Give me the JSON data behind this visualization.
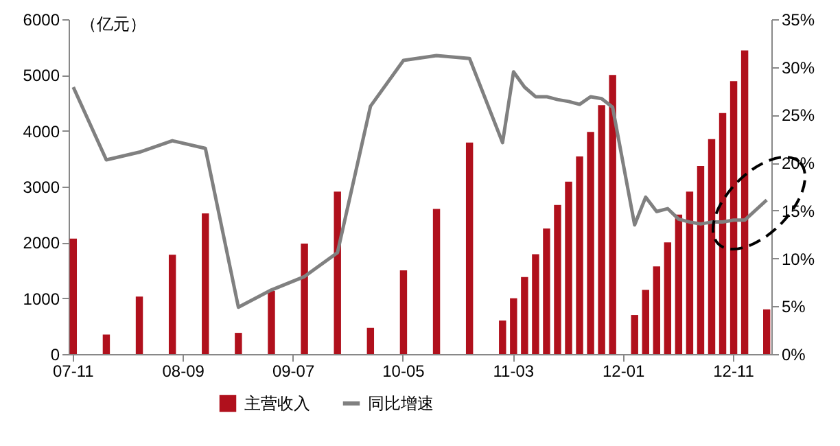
{
  "chart_data": {
    "type": "bar",
    "ylabel": "（亿元）",
    "categories": [
      "07-11",
      null,
      null,
      null,
      null,
      null,
      null,
      null,
      null,
      null,
      "08-09",
      null,
      null,
      null,
      null,
      null,
      null,
      null,
      null,
      null,
      "09-07",
      null,
      null,
      null,
      null,
      null,
      null,
      null,
      null,
      null,
      "10-05",
      null,
      null,
      null,
      null,
      null,
      null,
      null,
      null,
      null,
      "11-03",
      null,
      null,
      null,
      null,
      null,
      null,
      null,
      null,
      null,
      "12-01",
      null,
      null,
      null,
      null,
      null,
      null,
      null,
      null,
      null,
      "12-11",
      null,
      null,
      null
    ],
    "series": [
      {
        "name": "主营收入",
        "color": "#b0101c",
        "values": [
          2070,
          null,
          null,
          350,
          null,
          null,
          1030,
          null,
          null,
          1780,
          null,
          null,
          2520,
          null,
          null,
          380,
          null,
          null,
          1130,
          null,
          null,
          1980,
          null,
          null,
          2910,
          null,
          null,
          470,
          null,
          null,
          1500,
          null,
          null,
          2600,
          null,
          null,
          3790,
          null,
          null,
          600,
          1000,
          1380,
          1790,
          2250,
          2670,
          3090,
          3540,
          3980,
          4460,
          5000,
          null,
          700,
          1150,
          1570,
          2000,
          2500,
          2910,
          3370,
          3850,
          4320,
          4890,
          5440,
          null,
          800
        ]
      },
      {
        "name": "同比增速",
        "type": "line",
        "axis": "y2",
        "color": "#808080",
        "values": [
          27.9,
          null,
          null,
          20.3,
          null,
          null,
          21.1,
          null,
          null,
          22.3,
          null,
          null,
          21.5,
          null,
          null,
          4.9,
          null,
          null,
          6.7,
          null,
          null,
          8.1,
          null,
          null,
          10.6,
          null,
          null,
          25.9,
          null,
          null,
          30.7,
          null,
          null,
          31.2,
          null,
          null,
          30.9,
          null,
          null,
          22.1,
          29.5,
          27.9,
          26.9,
          26.9,
          26.6,
          26.4,
          26.1,
          26.9,
          26.7,
          25.8,
          null,
          13.5,
          16.4,
          14.9,
          15.2,
          14.1,
          13.8,
          13.6,
          13.8,
          13.8,
          14.0,
          14.0,
          null,
          16.1
        ]
      }
    ],
    "ylim": [
      0,
      6000
    ],
    "yticks": [
      0,
      1000,
      2000,
      3000,
      4000,
      5000,
      6000
    ],
    "y2lim": [
      0,
      35
    ],
    "y2ticks": [
      {
        "value": 0,
        "label": "0%"
      },
      {
        "value": 5,
        "label": "5%"
      },
      {
        "value": 10,
        "label": "10%"
      },
      {
        "value": 15,
        "label": "15%"
      },
      {
        "value": 20,
        "label": "20%"
      },
      {
        "value": 25,
        "label": "25%"
      },
      {
        "value": 30,
        "label": "30%"
      },
      {
        "value": 35,
        "label": "35%"
      }
    ],
    "grid": false,
    "legend": "bottom"
  }
}
